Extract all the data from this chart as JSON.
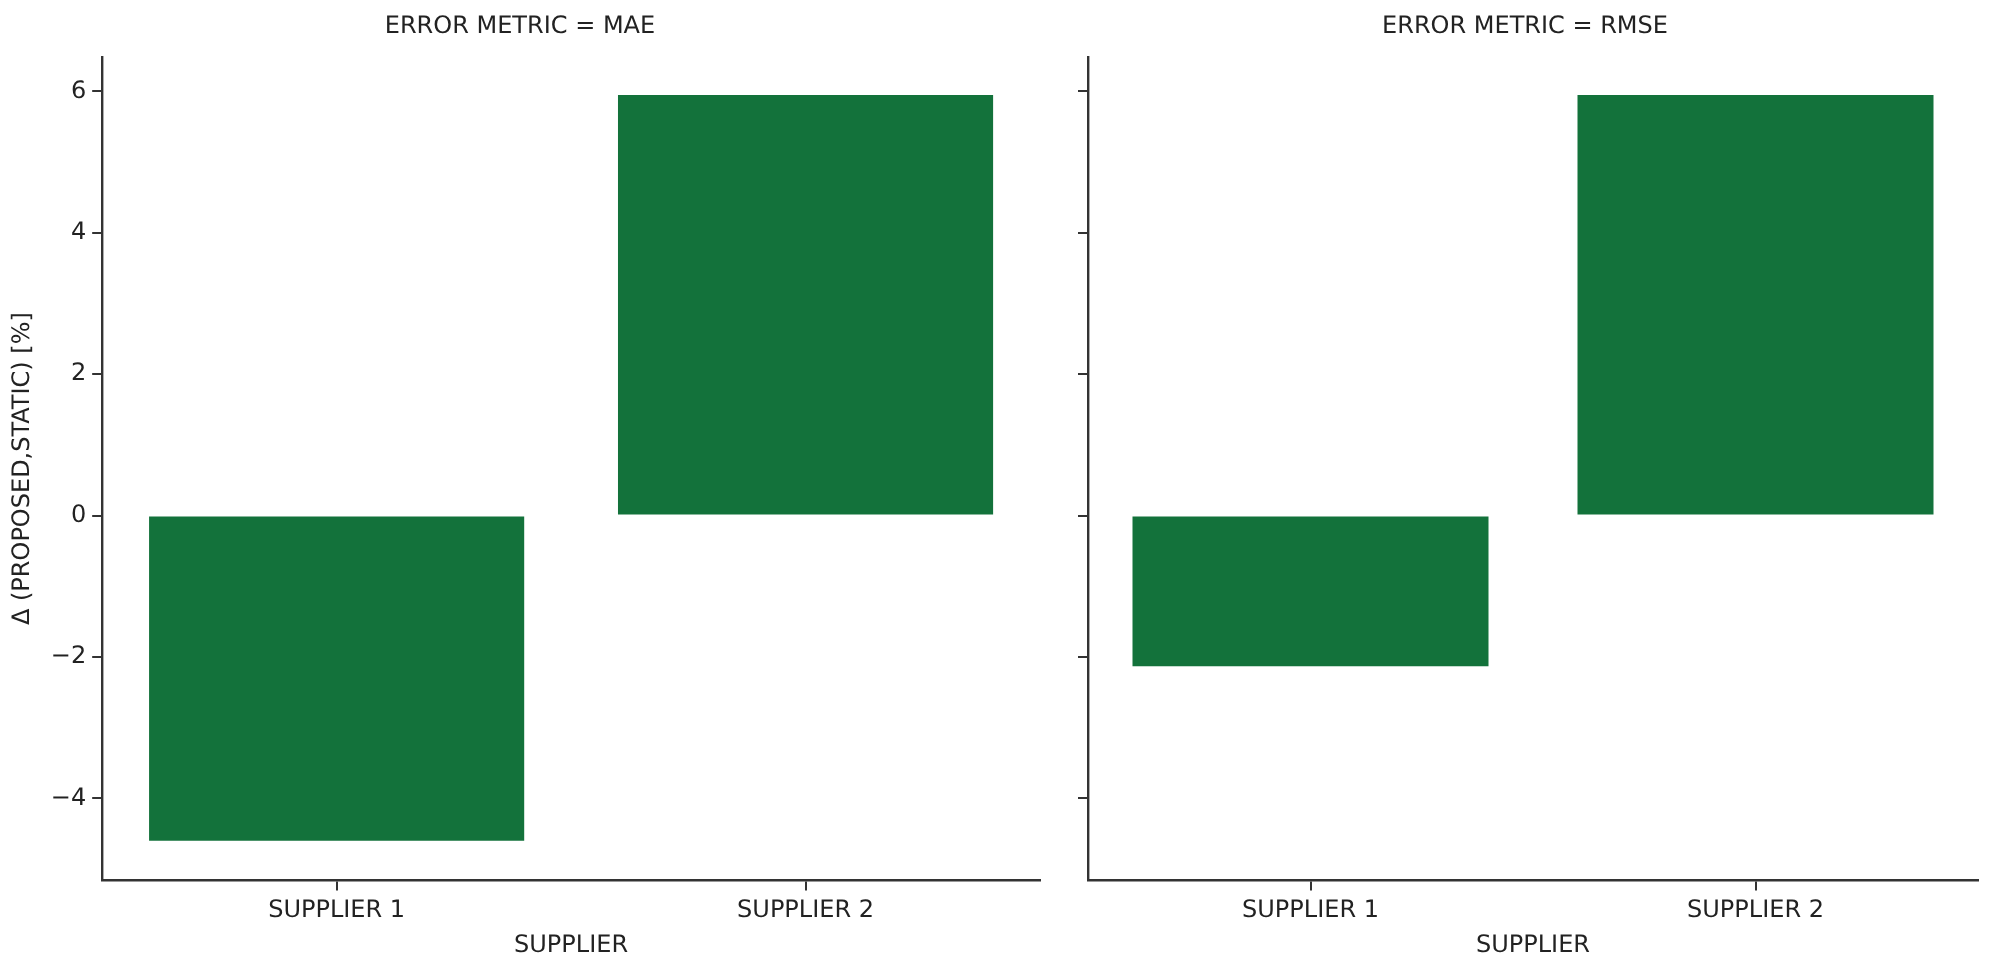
{
  "chart_data": [
    {
      "type": "bar",
      "title": "ERROR METRIC = MAE",
      "xlabel": "SUPPLIER",
      "ylabel": "Δ (PROPOSED,STATIC) [%]",
      "categories": [
        "SUPPLIER 1",
        "SUPPLIER 2"
      ],
      "values": [
        -4.6,
        5.95
      ],
      "color": "#13723b",
      "ylim": [
        -5.16,
        6.49
      ],
      "yticks": [
        {
          "value": -4,
          "label": "−4"
        },
        {
          "value": -2,
          "label": "−2"
        },
        0,
        2,
        4,
        6
      ]
    },
    {
      "type": "bar",
      "title": "ERROR METRIC = RMSE",
      "xlabel": "SUPPLIER",
      "categories": [
        "SUPPLIER 1",
        "SUPPLIER 2"
      ],
      "values": [
        -2.13,
        5.95
      ],
      "color": "#13723b",
      "ylim": [
        -5.16,
        6.49
      ],
      "yticks": [
        -4,
        -2,
        0,
        2,
        4,
        6
      ],
      "tick_labels": "x"
    }
  ]
}
